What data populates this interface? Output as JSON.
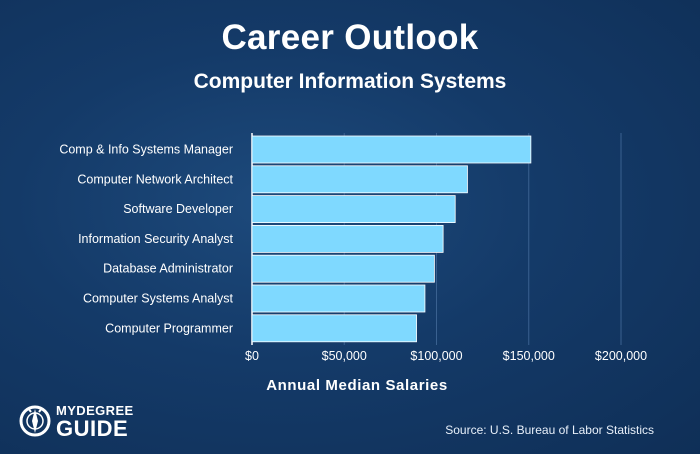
{
  "header": {
    "title": "Career Outlook",
    "subtitle": "Computer Information Systems"
  },
  "chart_data": {
    "type": "bar",
    "orientation": "horizontal",
    "categories": [
      "Comp & Info Systems Manager",
      "Computer Network Architect",
      "Software Developer",
      "Information Security Analyst",
      "Database Administrator",
      "Computer Systems Analyst",
      "Computer Programmer"
    ],
    "values": [
      151150,
      116780,
      110140,
      103590,
      98860,
      93730,
      89190
    ],
    "xlabel": "Annual Median Salaries",
    "xticks": [
      "$0",
      "$50,000",
      "$100,000",
      "$150,000",
      "$200,000"
    ],
    "xlim": [
      0,
      200000
    ],
    "bar_color": "#7fd9ff",
    "grid": true
  },
  "footer": {
    "logo_top": "MYDEGREE",
    "logo_bottom": "GUIDE",
    "source": "Source: U.S. Bureau of Labor Statistics"
  }
}
